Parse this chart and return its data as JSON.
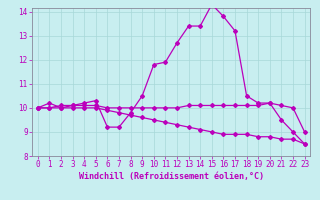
{
  "xlabel": "Windchill (Refroidissement éolien,°C)",
  "bg_color": "#c8eef0",
  "grid_color": "#a8d8d8",
  "line_color": "#bb00bb",
  "spine_color": "#888899",
  "x_min": 0,
  "x_max": 23,
  "y_min": 8,
  "y_max": 14,
  "line1_x": [
    0,
    1,
    2,
    3,
    4,
    5,
    6,
    7,
    8,
    9,
    10,
    11,
    12,
    13,
    14,
    15,
    16,
    17,
    18,
    19,
    20,
    21,
    22,
    23
  ],
  "line1_y": [
    10.0,
    10.2,
    10.0,
    10.1,
    10.2,
    10.3,
    9.2,
    9.2,
    9.8,
    10.5,
    11.8,
    11.9,
    12.7,
    13.4,
    13.4,
    14.3,
    13.8,
    13.2,
    10.5,
    10.2,
    10.2,
    9.5,
    9.0,
    8.5
  ],
  "line2_x": [
    0,
    1,
    2,
    3,
    4,
    5,
    6,
    7,
    8,
    9,
    10,
    11,
    12,
    13,
    14,
    15,
    16,
    17,
    18,
    19,
    20,
    21,
    22,
    23
  ],
  "line2_y": [
    10.0,
    10.0,
    10.1,
    10.1,
    10.1,
    10.1,
    10.0,
    10.0,
    10.0,
    10.0,
    10.0,
    10.0,
    10.0,
    10.1,
    10.1,
    10.1,
    10.1,
    10.1,
    10.1,
    10.1,
    10.2,
    10.1,
    10.0,
    9.0
  ],
  "line3_x": [
    0,
    1,
    2,
    3,
    4,
    5,
    6,
    7,
    8,
    9,
    10,
    11,
    12,
    13,
    14,
    15,
    16,
    17,
    18,
    19,
    20,
    21,
    22,
    23
  ],
  "line3_y": [
    10.0,
    10.0,
    10.0,
    10.0,
    10.0,
    10.0,
    9.9,
    9.8,
    9.7,
    9.6,
    9.5,
    9.4,
    9.3,
    9.2,
    9.1,
    9.0,
    8.9,
    8.9,
    8.9,
    8.8,
    8.8,
    8.7,
    8.7,
    8.5
  ],
  "tick_label_fontsize": 5.5,
  "axis_label_fontsize": 6.0,
  "marker_size": 2.0
}
